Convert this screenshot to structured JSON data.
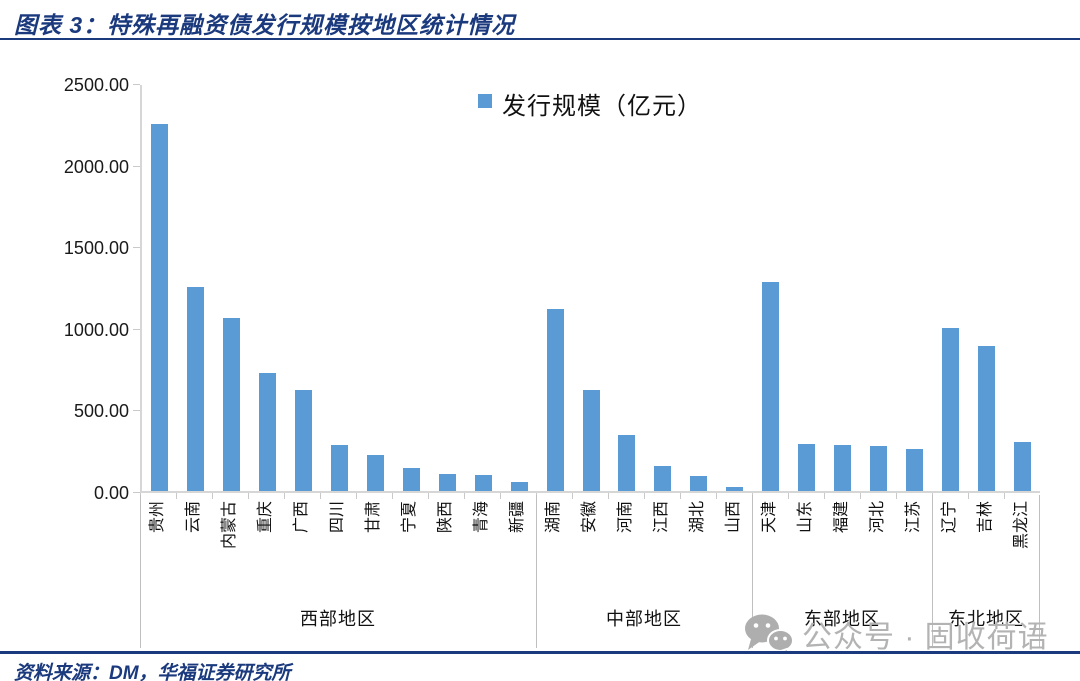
{
  "header": {
    "title": "图表 3：特殊再融资债发行规模按地区统计情况"
  },
  "footer": {
    "source": "资料来源：DM，华福证券研究所"
  },
  "watermark": {
    "icon": "wechat-icon",
    "text": "公众号 · 固收荷语"
  },
  "chart_data": {
    "type": "bar",
    "title": "特殊再融资债发行规模按地区统计情况",
    "legend": "发行规模（亿元）",
    "legend_position": "top-center",
    "grid": false,
    "ylim": [
      0,
      2500
    ],
    "ytick_step": 500,
    "ytick_labels": [
      "0.00",
      "500.00",
      "1000.00",
      "1500.00",
      "2000.00",
      "2500.00"
    ],
    "categories": [
      "贵州",
      "云南",
      "内蒙古",
      "重庆",
      "广西",
      "四川",
      "甘肃",
      "宁夏",
      "陕西",
      "青海",
      "新疆",
      "湖南",
      "安徽",
      "河南",
      "江西",
      "湖北",
      "山西",
      "天津",
      "山东",
      "福建",
      "河北",
      "江苏",
      "辽宁",
      "吉林",
      "黑龙江"
    ],
    "values": [
      2263,
      1256,
      1067,
      726,
      623,
      283,
      220,
      140,
      102,
      96,
      56,
      1122,
      620,
      346,
      157,
      94,
      26,
      1286,
      288,
      283,
      276,
      260,
      1006,
      892,
      303
    ],
    "groups": [
      {
        "label": "西部地区",
        "count": 11
      },
      {
        "label": "中部地区",
        "count": 6
      },
      {
        "label": "东部地区",
        "count": 5
      },
      {
        "label": "东北地区",
        "count": 3
      }
    ],
    "bar_color": "#5b9bd5"
  },
  "colors": {
    "accent_navy": "#1b3a7e",
    "bar": "#5b9bd5",
    "axis_gray": "#c9c9c9",
    "watermark_gray": "#b3b3b3"
  }
}
